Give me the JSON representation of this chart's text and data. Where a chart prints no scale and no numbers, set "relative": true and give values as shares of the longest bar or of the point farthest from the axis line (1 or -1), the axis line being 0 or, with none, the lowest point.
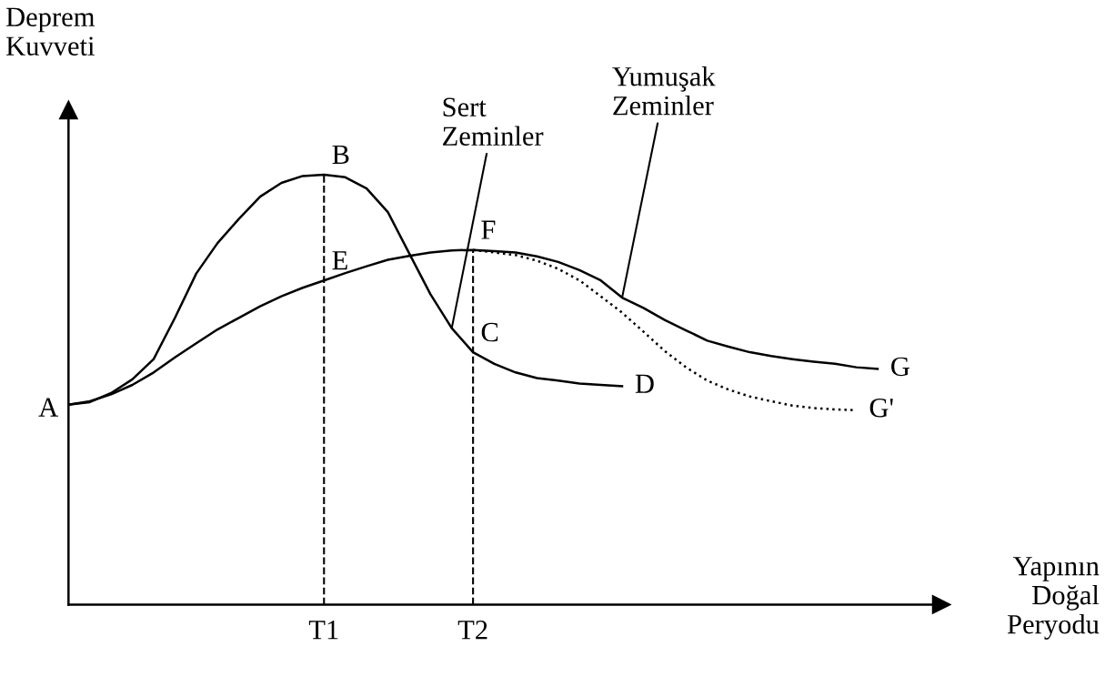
{
  "chart_data": {
    "type": "line",
    "relative": true,
    "ylabel": "Deprem\nKuvveti",
    "xlabel": "Yapının\nDoğal\nPeryodu",
    "categories": [
      null,
      null,
      null,
      null,
      null,
      null,
      null,
      null,
      null,
      null,
      null,
      null,
      "T1",
      null,
      null,
      null,
      null,
      null,
      null,
      "T2",
      null,
      null,
      null,
      null,
      null,
      null,
      null,
      null,
      null,
      null,
      null,
      null,
      null,
      null,
      null,
      null,
      null,
      null,
      null,
      null,
      null,
      null
    ],
    "marker": "none",
    "legend": false,
    "series": [
      {
        "name": "Sert\nZeminler",
        "color": "#000000",
        "line_style": "solid",
        "values": [
          0.465,
          0.471,
          0.492,
          0.524,
          0.571,
          0.667,
          0.77,
          0.841,
          0.897,
          0.949,
          0.981,
          0.997,
          1,
          0.994,
          0.968,
          0.913,
          0.817,
          0.722,
          0.643,
          0.587,
          0.56,
          0.54,
          0.527,
          0.521,
          0.514,
          0.511,
          0.508,
          null,
          null,
          null,
          null,
          null,
          null,
          null,
          null,
          null,
          null,
          null,
          null,
          null,
          null,
          null
        ]
      },
      {
        "name": "Yumuşak\nZeminler",
        "color": "#000000",
        "line_style": "solid",
        "values": [
          0.465,
          0.473,
          0.489,
          0.511,
          0.54,
          0.575,
          0.608,
          0.64,
          0.667,
          0.694,
          0.717,
          0.737,
          0.754,
          0.771,
          0.787,
          0.802,
          0.811,
          0.819,
          0.824,
          0.825,
          0.822,
          0.819,
          0.81,
          0.797,
          0.778,
          0.754,
          0.714,
          0.69,
          0.662,
          0.638,
          0.614,
          0.6,
          0.587,
          0.578,
          0.571,
          0.565,
          0.56,
          0.552,
          0.548,
          null,
          null,
          null
        ]
      },
      {
        "color": "#000000",
        "line_style": "dotted",
        "values": [
          null,
          null,
          null,
          null,
          null,
          null,
          null,
          null,
          null,
          null,
          null,
          null,
          null,
          null,
          null,
          null,
          null,
          null,
          null,
          0.825,
          0.819,
          0.813,
          0.8,
          0.781,
          0.754,
          0.717,
          0.679,
          0.635,
          0.59,
          0.552,
          0.521,
          0.5,
          0.484,
          0.473,
          0.463,
          0.457,
          0.454,
          0.452,
          null,
          null,
          null,
          null
        ]
      }
    ],
    "ref_lines": [
      {
        "axis": "x",
        "value": "T1",
        "line_style": "dashed"
      },
      {
        "axis": "x",
        "value": "T2",
        "line_style": "dashed"
      }
    ],
    "annotations": [
      "A",
      {
        "text": "B",
        "x": "T1",
        "y": 1
      },
      {
        "text": "E",
        "x": "T1",
        "y": 0.754
      },
      {
        "text": "F",
        "x": "T2",
        "y": 0.825
      },
      {
        "text": "C",
        "x": "T2",
        "y": 0.587
      },
      "D",
      "G",
      "G'"
    ]
  }
}
